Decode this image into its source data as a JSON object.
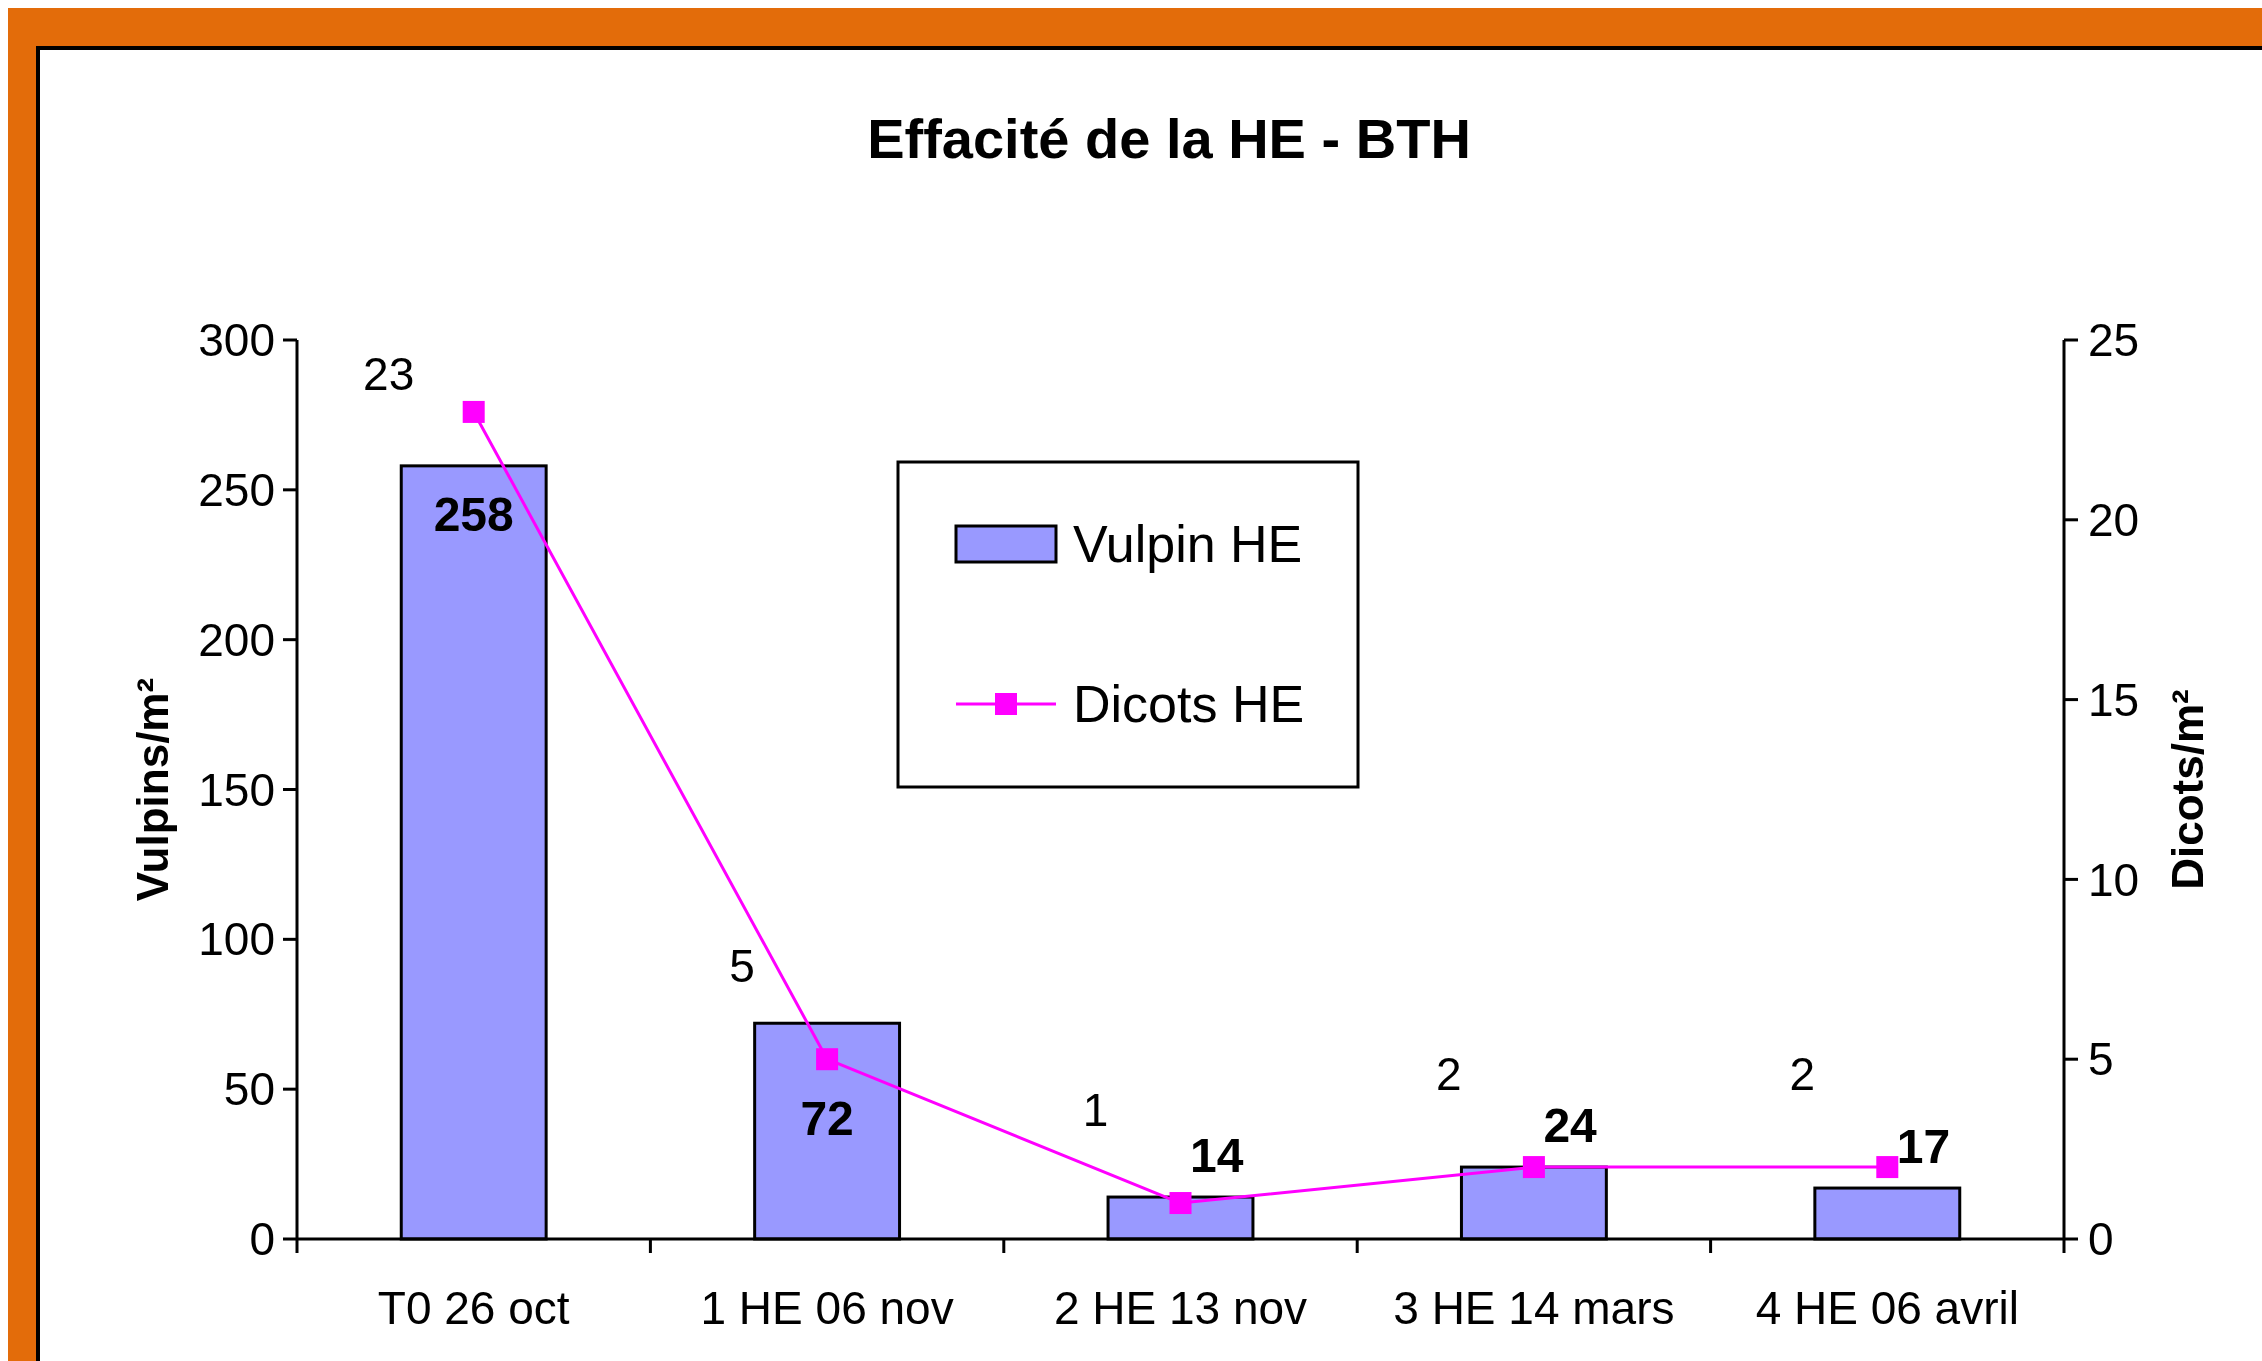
{
  "chart_data": {
    "type": "bar",
    "title": "Effacité de la HE - BTH",
    "ylabel": "Vulpins/m²",
    "y2label": "Dicots/m²",
    "categories": [
      "T0 26 oct",
      "1 HE 06 nov",
      "2 HE 13 nov",
      "3 HE 14 mars",
      "4 HE 06 avril"
    ],
    "series": [
      {
        "name": "Vulpin HE",
        "color": "#9999ff",
        "values": [
          258,
          72,
          14,
          24,
          17
        ]
      },
      {
        "name": "Dicots HE",
        "type": "line",
        "axis": "y2",
        "color": "#ff00ff",
        "values": [
          23,
          5,
          1,
          2,
          2
        ]
      }
    ],
    "ylim": [
      0,
      300
    ],
    "yticks": [
      0,
      50,
      100,
      150,
      200,
      250,
      300
    ],
    "y2lim": [
      0,
      25
    ],
    "y2ticks": [
      0,
      5,
      10,
      15,
      20,
      25
    ],
    "data_labels": true,
    "legend": "top",
    "marker": "square",
    "grid": false
  }
}
